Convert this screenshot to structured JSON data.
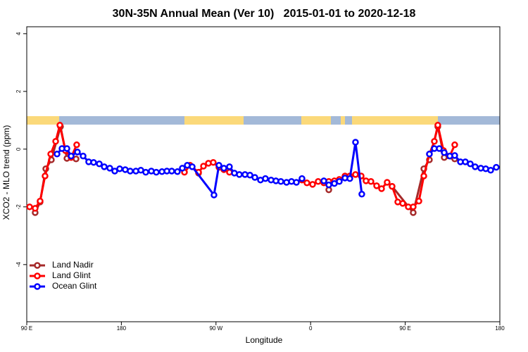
{
  "chart_data": {
    "type": "line",
    "title": "30N-35N Annual Mean (Ver 10)   2015-01-01 to 2020-12-18",
    "x_label": "Longitude",
    "y_label": "XCO2 - MLO trend (ppm)",
    "xlim": [
      90,
      540
    ],
    "ylim": [
      -5.98,
      4.24
    ],
    "xticks": [
      {
        "value": 90,
        "label": "90 E"
      },
      {
        "value": 180,
        "label": "180"
      },
      {
        "value": 270,
        "label": "90 W"
      },
      {
        "value": 360,
        "label": "0"
      },
      {
        "value": 450,
        "label": "90 E"
      },
      {
        "value": 540,
        "label": "180"
      }
    ],
    "yticks": [
      -4,
      -2,
      0,
      2,
      4
    ],
    "legend": "bottom-left",
    "series": [
      {
        "name": "Land Nadir",
        "color": "#a52a2a",
        "x": [
          98.0,
          102.7,
          108.1,
          113.4,
          122.1,
          128.2,
          136.9,
          null,
          253.4,
          null,
          377.3,
          null,
          437.5,
          457.6,
          467.7,
          473.0,
          481.0,
          487.1,
          497.1
        ],
        "values": [
          -2.2,
          -1.83,
          -0.68,
          -0.37,
          0.78,
          -0.32,
          -0.34,
          null,
          -0.83,
          null,
          -1.41,
          null,
          -1.29,
          -2.2,
          -0.68,
          -0.37,
          0.78,
          -0.29,
          -0.34
        ]
      },
      {
        "name": "Land Glint",
        "color": "#ff0000",
        "x": [
          92.7,
          98.0,
          102.7,
          107.4,
          112.8,
          117.5,
          121.5,
          126.8,
          132.2,
          137.5,
          null,
          240.0,
          245.3,
          253.4,
          258.1,
          262.8,
          267.4,
          272.8,
          277.5,
          282.8,
          null,
          351.8,
          356.5,
          361.9,
          367.2,
          372.6,
          377.3,
          382.6,
          387.3,
          392.7,
          397.3,
          402.7,
          408.1,
          412.7,
          417.4,
          422.8,
          427.5,
          432.8,
          437.5,
          442.9,
          447.6,
          452.9,
          457.6,
          463.0,
          467.7,
          473.0,
          477.7,
          481.0,
          486.4,
          492.4,
          497.1
        ],
        "values": [
          -2.0,
          -2.05,
          -1.8,
          -0.93,
          -0.17,
          0.27,
          0.83,
          -0.05,
          -0.29,
          0.15,
          null,
          -0.8,
          -0.56,
          -0.8,
          -0.59,
          -0.49,
          -0.46,
          -0.63,
          -0.71,
          -0.8,
          null,
          -1.07,
          -1.17,
          -1.22,
          -1.12,
          -1.17,
          -1.12,
          -1.1,
          -1.05,
          -0.93,
          -0.93,
          -0.88,
          -0.93,
          -1.1,
          -1.12,
          -1.27,
          -1.37,
          -1.15,
          -1.29,
          -1.83,
          -1.88,
          -2.0,
          -2.0,
          -1.8,
          -0.93,
          -0.17,
          0.27,
          0.83,
          -0.05,
          -0.24,
          0.15
        ]
      },
      {
        "name": "Ocean Glint",
        "color": "#0000ff",
        "x": [
          118.8,
          123.5,
          128.2,
          132.2,
          138.2,
          143.6,
          148.9,
          153.6,
          159.0,
          163.7,
          169.0,
          173.7,
          178.4,
          183.7,
          188.4,
          193.8,
          198.5,
          203.2,
          208.5,
          213.2,
          218.6,
          223.3,
          227.9,
          233.3,
          238.0,
          242.7,
          247.4,
          268.1,
          272.8,
          277.5,
          282.8,
          287.5,
          292.2,
          297.6,
          302.3,
          307.0,
          312.3,
          317.0,
          322.4,
          327.0,
          331.7,
          337.1,
          341.8,
          346.5,
          351.8,
          null,
          372.6,
          377.3,
          382.6,
          387.3,
          392.7,
          397.3,
          402.7,
          408.7,
          null,
          473.0,
          477.7,
          482.4,
          487.1,
          492.4,
          497.1,
          502.5,
          507.2,
          511.9,
          516.5,
          521.9,
          526.6,
          531.3,
          536.6
        ],
        "values": [
          -0.17,
          0.02,
          0.02,
          -0.24,
          -0.1,
          -0.24,
          -0.44,
          -0.46,
          -0.51,
          -0.61,
          -0.66,
          -0.76,
          -0.68,
          -0.71,
          -0.76,
          -0.76,
          -0.73,
          -0.8,
          -0.76,
          -0.8,
          -0.78,
          -0.76,
          -0.76,
          -0.78,
          -0.66,
          -0.56,
          -0.61,
          -1.59,
          -0.56,
          -0.66,
          -0.61,
          -0.83,
          -0.88,
          -0.88,
          -0.9,
          -0.98,
          -1.07,
          -1.02,
          -1.07,
          -1.1,
          -1.12,
          -1.15,
          -1.12,
          -1.15,
          -1.02,
          null,
          -1.1,
          -1.24,
          -1.19,
          -1.12,
          -1.0,
          -1.02,
          0.24,
          -1.56,
          null,
          -0.17,
          0.02,
          0.02,
          -0.12,
          -0.24,
          -0.22,
          -0.44,
          -0.44,
          -0.51,
          -0.61,
          -0.66,
          -0.68,
          -0.73,
          -0.63
        ]
      }
    ]
  }
}
